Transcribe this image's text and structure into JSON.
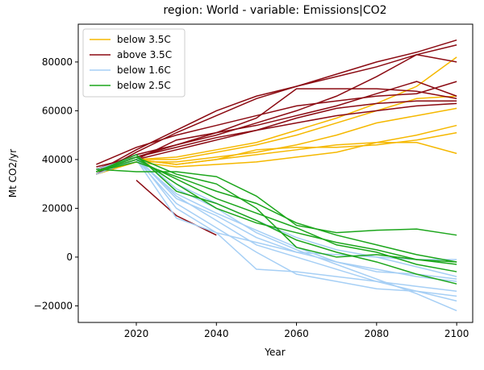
{
  "chart_data": {
    "type": "line",
    "title": "region: World - variable: Emissions|CO2",
    "x_label": "Year",
    "y_label": "Mt CO2/yr",
    "x": [
      2010,
      2020,
      2030,
      2040,
      2050,
      2060,
      2070,
      2080,
      2090,
      2100
    ],
    "xlim": [
      2005.5,
      2104
    ],
    "ylim": [
      -26800,
      95500
    ],
    "xticks": [
      2020,
      2040,
      2060,
      2080,
      2100
    ],
    "yticks": [
      {
        "value": -20000,
        "label": "−20000"
      },
      0,
      20000,
      40000,
      60000,
      80000
    ],
    "legend": "upper left",
    "grid": false,
    "series": [
      {
        "name": "below 3.5C",
        "color": "#f5b800",
        "lines": [
          [
            35000,
            40000,
            41000,
            44000,
            47000,
            52000,
            57000,
            63000,
            70000,
            82000
          ],
          [
            35000,
            40000,
            40000,
            43000,
            46000,
            50000,
            55000,
            60000,
            65000,
            66000
          ],
          [
            34000,
            39000,
            39000,
            41000,
            43000,
            46000,
            50000,
            55000,
            58000,
            61000
          ],
          [
            35000,
            40000,
            38000,
            40000,
            42000,
            44000,
            46000,
            47000,
            47000,
            42500
          ],
          [
            34000,
            39000,
            37000,
            38000,
            39000,
            41000,
            43000,
            47000,
            50000,
            54000
          ],
          [
            35000,
            40000,
            38000,
            40000,
            44000,
            45000,
            45000,
            46000,
            48000,
            51000
          ]
        ]
      },
      {
        "name": "above 3.5C",
        "color": "#8b0a12",
        "lines": [
          [
            34000,
            43000,
            51000,
            58000,
            65000,
            70000,
            75000,
            80000,
            84000,
            89000
          ],
          [
            35000,
            44000,
            52000,
            60000,
            66000,
            70000,
            74000,
            78000,
            83000,
            80000
          ],
          [
            38000,
            45000,
            50000,
            54000,
            58000,
            62000,
            64000,
            66000,
            67000,
            72000
          ],
          [
            36000,
            42000,
            46000,
            50000,
            55000,
            60000,
            66000,
            74000,
            83000,
            87000
          ],
          [
            35000,
            41000,
            46000,
            51000,
            54000,
            58000,
            62000,
            67000,
            72000,
            66000
          ],
          [
            34000,
            40000,
            44000,
            48000,
            52000,
            57000,
            61000,
            63000,
            64000,
            64000
          ],
          [
            37000,
            41000,
            45000,
            49000,
            52000,
            55000,
            58000,
            60000,
            62000,
            63000
          ],
          [
            35000,
            40000,
            48000,
            51000,
            57000,
            69000,
            69000,
            69000,
            68000,
            65000
          ],
          [
            null,
            31500,
            17000,
            9000,
            null,
            null,
            null,
            null,
            null,
            null
          ]
        ]
      },
      {
        "name": "below 1.6C",
        "color": "#a6cff5",
        "lines": [
          [
            35000,
            40000,
            16000,
            10000,
            6000,
            2000,
            -2000,
            -5000,
            -8000,
            -10000
          ],
          [
            36000,
            41000,
            20000,
            10000,
            -5000,
            -6000,
            -8000,
            -10000,
            -12000,
            -14000
          ],
          [
            35000,
            41000,
            25000,
            15000,
            5000,
            0,
            -5000,
            -10000,
            -14000,
            -18000
          ],
          [
            35000,
            42000,
            28000,
            20000,
            10000,
            3000,
            -3000,
            -9000,
            -15000,
            -22000
          ],
          [
            35000,
            40000,
            22000,
            12000,
            2000,
            -7000,
            -10000,
            -13000,
            -14000,
            -16000
          ],
          [
            35000,
            41000,
            30000,
            22000,
            15000,
            8000,
            3000,
            0,
            -4000,
            -8000
          ],
          [
            34000,
            40000,
            26000,
            18000,
            11000,
            4000,
            -2000,
            -6000,
            -7000,
            -9000
          ],
          [
            35000,
            41000,
            24000,
            17000,
            8000,
            2000,
            1000,
            0,
            -1000,
            -1000
          ]
        ]
      },
      {
        "name": "below 2.5C",
        "color": "#1ca61c",
        "lines": [
          [
            36000,
            35000,
            35000,
            33000,
            25000,
            13000,
            10000,
            11000,
            11500,
            9000
          ],
          [
            35000,
            39000,
            33000,
            27000,
            22000,
            14000,
            9000,
            5000,
            1000,
            -2000
          ],
          [
            35000,
            41000,
            30000,
            20000,
            14000,
            10000,
            6000,
            3000,
            -1000,
            -2000
          ],
          [
            35000,
            40000,
            32000,
            24000,
            18000,
            12000,
            5000,
            2000,
            -3000,
            -6000
          ],
          [
            35000,
            42000,
            27000,
            22000,
            15000,
            7000,
            2000,
            -2000,
            -7000,
            -11000
          ],
          [
            35000,
            41000,
            34000,
            30000,
            20000,
            4000,
            0,
            1000,
            -1000,
            -3000
          ]
        ]
      }
    ]
  }
}
